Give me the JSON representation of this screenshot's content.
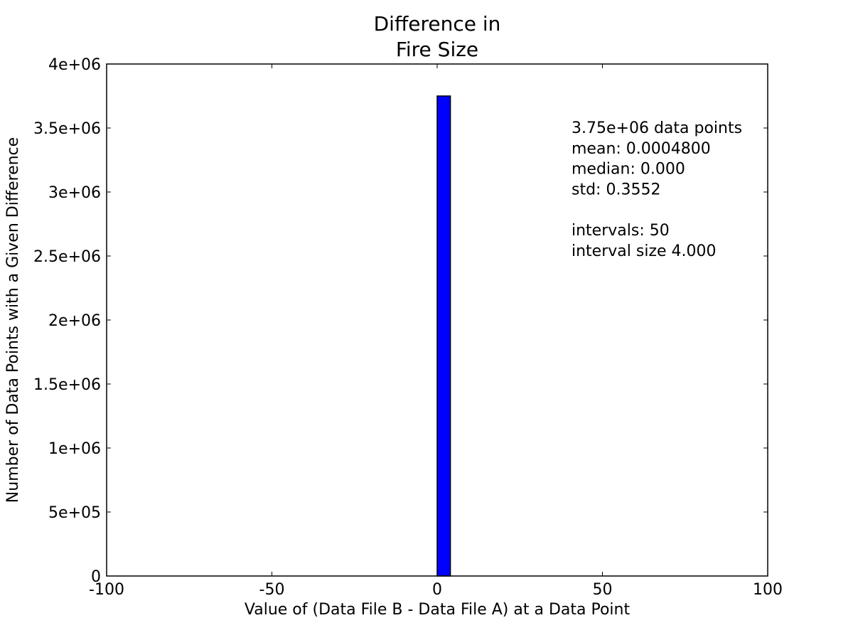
{
  "chart_data": {
    "type": "bar",
    "title_lines": [
      "Difference in",
      "Fire Size"
    ],
    "xlabel": "Value of (Data File B - Data File A) at a Data Point",
    "ylabel": "Number of Data Points with a Given Difference",
    "xlim": [
      -100,
      100
    ],
    "ylim": [
      0,
      4000000
    ],
    "xticks": [
      -100,
      -50,
      0,
      50,
      100
    ],
    "xtick_labels": [
      "-100",
      "-50",
      "0",
      "50",
      "100"
    ],
    "yticks": [
      0,
      500000,
      1000000,
      1500000,
      2000000,
      2500000,
      3000000,
      3500000,
      4000000
    ],
    "ytick_labels": [
      "0",
      "5e+05",
      "1e+06",
      "1.5e+06",
      "2e+06",
      "2.5e+06",
      "3e+06",
      "3.5e+06",
      "4e+06"
    ],
    "bars": [
      {
        "x0": 0,
        "x1": 4,
        "value": 3750000
      }
    ],
    "bar_color": "#0000ff",
    "grid": false,
    "stats_lines": [
      "3.75e+06 data points",
      "mean: 0.0004800",
      "median: 0.000",
      "std: 0.3552",
      "",
      "intervals: 50",
      "interval size 4.000"
    ]
  }
}
